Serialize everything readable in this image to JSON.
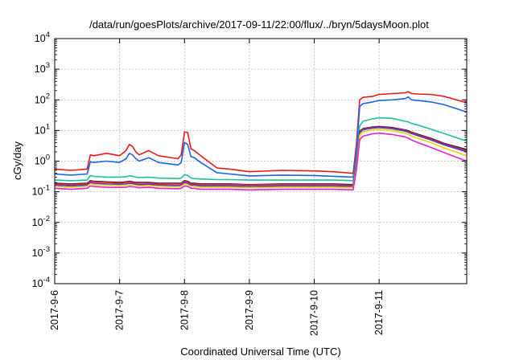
{
  "chart_data": {
    "type": "line",
    "title": "/data/run/goesPlots/archive/2017-09-11/22:00/flux/../bryn/5daysMoon.plot",
    "xlabel": "Coordinated Universal Time (UTC)",
    "ylabel": "cGy/day",
    "yscale": "log",
    "ylim": [
      0.0001,
      10000
    ],
    "xlim": [
      0,
      6.35
    ],
    "grid": true,
    "x_ticks": [
      {
        "x": 0,
        "label": "2017-9-6"
      },
      {
        "x": 1,
        "label": "2017-9-7"
      },
      {
        "x": 2,
        "label": "2017-9-8"
      },
      {
        "x": 3,
        "label": "2017-9-9"
      },
      {
        "x": 4,
        "label": "2017-9-10"
      },
      {
        "x": 5,
        "label": "2017-9-11"
      }
    ],
    "y_ticks": [
      {
        "exp": -4,
        "base": "10",
        "sup": "-4"
      },
      {
        "exp": -3,
        "base": "10",
        "sup": "-3"
      },
      {
        "exp": -2,
        "base": "10",
        "sup": "-2"
      },
      {
        "exp": -1,
        "base": "10",
        "sup": "-1"
      },
      {
        "exp": 0,
        "base": "10",
        "sup": "0"
      },
      {
        "exp": 1,
        "base": "10",
        "sup": "1"
      },
      {
        "exp": 2,
        "base": "10",
        "sup": "2"
      },
      {
        "exp": 3,
        "base": "10",
        "sup": "3"
      },
      {
        "exp": 4,
        "base": "10",
        "sup": "4"
      }
    ],
    "x": [
      0,
      0.25,
      0.5,
      0.55,
      0.6,
      0.8,
      1.0,
      1.1,
      1.15,
      1.2,
      1.25,
      1.3,
      1.45,
      1.6,
      1.9,
      1.95,
      2.0,
      2.05,
      2.1,
      2.15,
      2.25,
      2.5,
      2.7,
      3.0,
      3.5,
      4.0,
      4.3,
      4.6,
      4.65,
      4.7,
      4.75,
      4.9,
      5.0,
      5.2,
      5.4,
      5.45,
      5.5,
      5.6,
      5.8,
      6.0,
      6.35
    ],
    "series": [
      {
        "color": "#e8191c",
        "values": [
          0.55,
          0.5,
          0.55,
          1.6,
          1.5,
          1.8,
          1.5,
          2.2,
          3.5,
          3.0,
          2.0,
          1.6,
          2.2,
          1.5,
          1.2,
          1.6,
          9.0,
          8.5,
          2.5,
          2.2,
          1.5,
          0.6,
          0.55,
          0.45,
          0.5,
          0.48,
          0.45,
          0.4,
          3.5,
          100,
          120,
          130,
          150,
          160,
          170,
          185,
          160,
          155,
          150,
          130,
          80
        ]
      },
      {
        "color": "#1a63e6",
        "values": [
          0.38,
          0.35,
          0.38,
          0.95,
          0.9,
          1.0,
          0.9,
          1.2,
          1.8,
          1.6,
          1.2,
          1.0,
          1.3,
          0.9,
          0.75,
          0.9,
          4.0,
          3.5,
          1.4,
          1.3,
          0.9,
          0.42,
          0.38,
          0.33,
          0.35,
          0.34,
          0.32,
          0.3,
          2.0,
          60,
          75,
          85,
          95,
          100,
          110,
          125,
          100,
          95,
          85,
          70,
          40
        ]
      },
      {
        "color": "#1fbfa0",
        "values": [
          0.24,
          0.23,
          0.24,
          0.34,
          0.32,
          0.3,
          0.3,
          0.31,
          0.33,
          0.32,
          0.3,
          0.29,
          0.3,
          0.28,
          0.27,
          0.28,
          0.36,
          0.34,
          0.28,
          0.27,
          0.26,
          0.25,
          0.25,
          0.24,
          0.24,
          0.24,
          0.24,
          0.23,
          1.0,
          14,
          20,
          24,
          26,
          25,
          20,
          19,
          17,
          15,
          11,
          8,
          4.5
        ]
      },
      {
        "color": "#1e1e50",
        "values": [
          0.19,
          0.18,
          0.19,
          0.23,
          0.22,
          0.21,
          0.2,
          0.21,
          0.22,
          0.21,
          0.2,
          0.2,
          0.2,
          0.19,
          0.19,
          0.19,
          0.23,
          0.22,
          0.19,
          0.19,
          0.18,
          0.18,
          0.18,
          0.17,
          0.18,
          0.18,
          0.18,
          0.17,
          0.8,
          9.5,
          11.5,
          13,
          13.5,
          12.5,
          10.5,
          9.8,
          8.8,
          7.5,
          5.5,
          3.8,
          2.4
        ]
      },
      {
        "color": "#ff2020",
        "values": [
          0.18,
          0.17,
          0.18,
          0.22,
          0.21,
          0.2,
          0.19,
          0.2,
          0.21,
          0.2,
          0.19,
          0.19,
          0.19,
          0.18,
          0.18,
          0.18,
          0.22,
          0.21,
          0.18,
          0.18,
          0.17,
          0.17,
          0.17,
          0.165,
          0.17,
          0.17,
          0.17,
          0.16,
          0.75,
          9.0,
          11,
          12.5,
          13,
          12,
          10,
          9.3,
          8.4,
          7.1,
          5.2,
          3.6,
          2.2
        ]
      },
      {
        "color": "#4040c8",
        "values": [
          0.165,
          0.155,
          0.165,
          0.2,
          0.19,
          0.18,
          0.175,
          0.18,
          0.19,
          0.185,
          0.175,
          0.17,
          0.175,
          0.165,
          0.16,
          0.165,
          0.2,
          0.19,
          0.165,
          0.165,
          0.155,
          0.155,
          0.155,
          0.15,
          0.155,
          0.155,
          0.155,
          0.15,
          0.7,
          8.4,
          10.5,
          12,
          12.5,
          11.4,
          9.5,
          8.8,
          7.9,
          6.7,
          4.9,
          3.4,
          2.0
        ]
      },
      {
        "color": "#f0d000",
        "values": [
          0.15,
          0.14,
          0.15,
          0.18,
          0.17,
          0.165,
          0.16,
          0.165,
          0.17,
          0.165,
          0.16,
          0.155,
          0.16,
          0.15,
          0.145,
          0.15,
          0.18,
          0.17,
          0.15,
          0.15,
          0.14,
          0.14,
          0.14,
          0.135,
          0.14,
          0.14,
          0.14,
          0.135,
          0.6,
          7.0,
          9.0,
          10.5,
          10.8,
          9.8,
          8.2,
          7.5,
          6.6,
          5.5,
          4.0,
          2.7,
          1.5
        ]
      },
      {
        "color": "#e020d8",
        "values": [
          0.13,
          0.12,
          0.13,
          0.155,
          0.15,
          0.14,
          0.14,
          0.14,
          0.15,
          0.145,
          0.14,
          0.135,
          0.14,
          0.13,
          0.125,
          0.13,
          0.155,
          0.15,
          0.13,
          0.13,
          0.12,
          0.12,
          0.12,
          0.115,
          0.12,
          0.12,
          0.12,
          0.115,
          0.5,
          5.0,
          6.5,
          7.8,
          8.2,
          7.4,
          6.2,
          5.6,
          4.9,
          4.0,
          2.8,
          1.9,
          1.0
        ]
      }
    ]
  }
}
